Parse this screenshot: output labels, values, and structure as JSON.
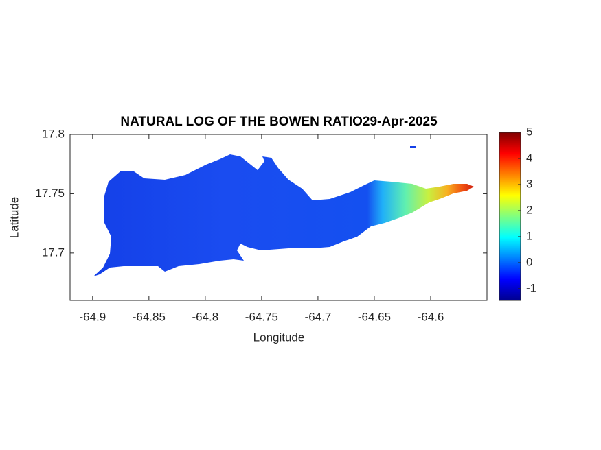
{
  "chart_data": {
    "type": "map",
    "title": "NATURAL LOG OF THE BOWEN RATIO29-Apr-2025",
    "xlabel": "Longitude",
    "ylabel": "Latitude",
    "xlim": [
      -64.92,
      -64.55
    ],
    "xticks": [
      -64.9,
      -64.85,
      -64.8,
      -64.75,
      -64.7,
      -64.65,
      -64.6
    ],
    "ylim": [
      17.66,
      17.8
    ],
    "yticks": [
      17.7,
      17.75,
      17.8
    ],
    "colorbar": {
      "colormap": "jet",
      "clim": [
        -1.45,
        5
      ],
      "ticks": [
        -1,
        0,
        1,
        2,
        3,
        4,
        5
      ]
    }
  }
}
